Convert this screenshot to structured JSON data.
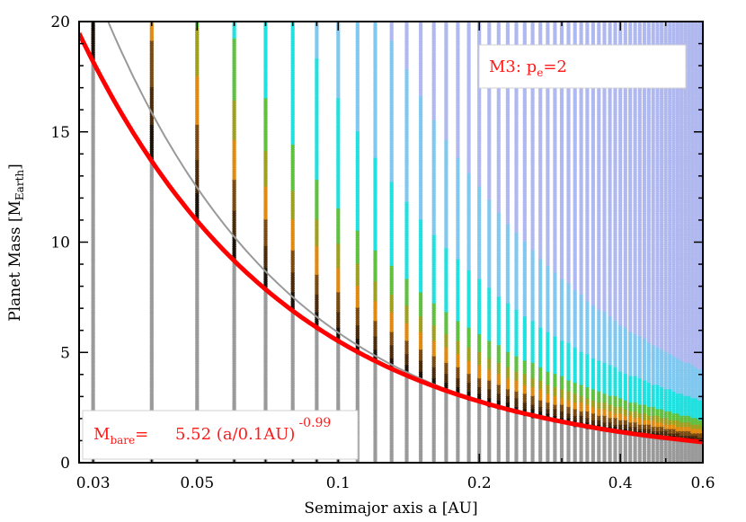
{
  "chart_data": {
    "type": "scatter",
    "xlabel": "Semimajor axis a [AU]",
    "ylabel_main": "Planet Mass [M",
    "ylabel_sub": "Earth",
    "ylabel_end": "]",
    "x_scale": "log",
    "xlim": [
      0.028,
      0.6
    ],
    "ylim": [
      0,
      20
    ],
    "x_ticks": [
      0.03,
      0.05,
      0.1,
      0.2,
      0.4,
      0.6
    ],
    "x_tick_labels": [
      "0.03",
      "0.05",
      "0.1",
      "0.2",
      "0.4",
      "0.6"
    ],
    "y_ticks": [
      0,
      5,
      10,
      15,
      20
    ],
    "y_tick_labels": [
      "0",
      "5",
      "10",
      "15",
      "20"
    ],
    "grid": {
      "a_columns": [
        0.03,
        0.04,
        0.05,
        0.06,
        0.07,
        0.08,
        0.09,
        0.1,
        0.11,
        0.12,
        0.13,
        0.14,
        0.15,
        0.16,
        0.17,
        0.18,
        0.19,
        0.2,
        0.21,
        0.22,
        0.23,
        0.24,
        0.25,
        0.26,
        0.27,
        0.28,
        0.29,
        0.3,
        0.31,
        0.32,
        0.33,
        0.34,
        0.35,
        0.36,
        0.37,
        0.38,
        0.39,
        0.4,
        0.41,
        0.42,
        0.43,
        0.44,
        0.45,
        0.46,
        0.47,
        0.48,
        0.49,
        0.5,
        0.51,
        0.52,
        0.53,
        0.54,
        0.55,
        0.56,
        0.57,
        0.58,
        0.59,
        0.6
      ],
      "mass_step": 0.1,
      "mass_max": 20,
      "colors": {
        "bare_core": "#9a9a9a",
        "black": "#1a1208",
        "brown_dark": "#4a2a08",
        "brown": "#7a4a10",
        "orange": "#e08a10",
        "olive": "#a0a020",
        "green": "#60c040",
        "cyan": "#20e0e0",
        "light_blue": "#80c8f0",
        "lavender": "#b0b8f0"
      }
    },
    "series": [
      {
        "name": "M_bare fit",
        "color": "#ff0000",
        "coefficient": 5.52,
        "exponent": -0.99,
        "a_ref": 0.1
      },
      {
        "color": "#999999",
        "coefficient": 5.9,
        "exponent": -1.08,
        "a_ref": 0.1
      }
    ],
    "annotations": {
      "model_label_main": "M3: p",
      "model_label_sub": "e",
      "model_label_end": "=2",
      "fit_label_m": "M",
      "fit_label_sub": "bare",
      "fit_label_eq": "=",
      "fit_label_body": "5.52 (a/0.1AU)",
      "fit_label_exp": "-0.99"
    }
  }
}
